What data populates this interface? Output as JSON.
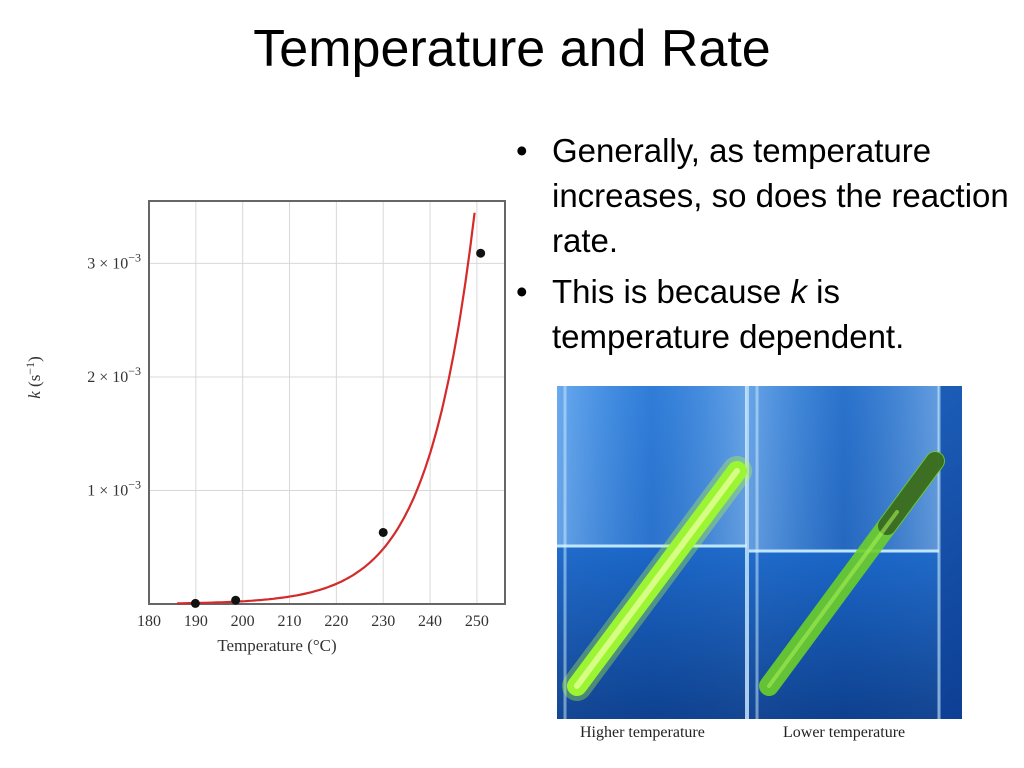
{
  "slide": {
    "title": "Temperature and Rate",
    "bullets": [
      {
        "text": "Generally, as temperature increases, so does the reaction rate."
      },
      {
        "before": "This is because ",
        "emphasis": "k",
        "after": " is temperature dependent."
      }
    ]
  },
  "photo": {
    "captions": [
      "Higher temperature",
      "Lower temperature"
    ]
  },
  "chart_data": {
    "type": "line",
    "xlabel": "Temperature (°C)",
    "ylabel_symbol": "k",
    "ylabel_unit": "(s",
    "ylabel_exp": "−1",
    "ylabel_close": ")",
    "xlim": [
      180,
      256
    ],
    "ylim": [
      0,
      3.55
    ],
    "y_multiplier_label": "× 10",
    "y_exponent_label": "−3",
    "x_ticks": [
      180,
      190,
      200,
      210,
      220,
      230,
      240,
      250
    ],
    "y_ticks": [
      1,
      2,
      3
    ],
    "grid": true,
    "line_color": "#d42a2a",
    "series": [
      {
        "points": [
          {
            "x": 189.9,
            "y": 0.0052
          },
          {
            "x": 198.5,
            "y": 0.0335
          },
          {
            "x": 230.0,
            "y": 0.63
          },
          {
            "x": 250.8,
            "y": 3.09
          }
        ]
      }
    ]
  }
}
